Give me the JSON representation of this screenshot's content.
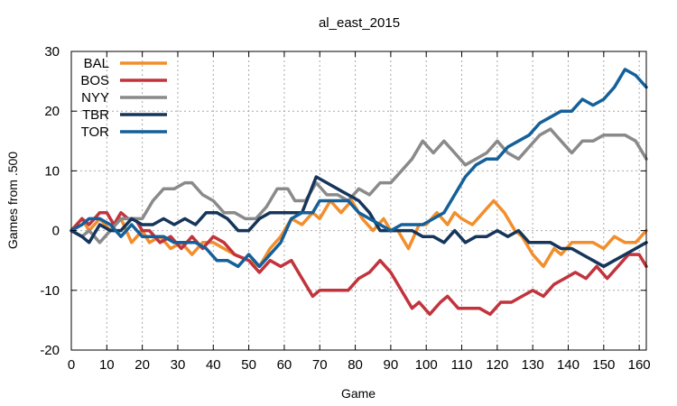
{
  "chart_data": {
    "type": "line",
    "title": "al_east_2015",
    "xlabel": "Game",
    "ylabel": "Games from .500",
    "xlim": [
      0,
      162
    ],
    "ylim": [
      -20,
      30
    ],
    "xticks": [
      0,
      10,
      20,
      30,
      40,
      50,
      60,
      70,
      80,
      90,
      100,
      110,
      120,
      130,
      140,
      150,
      160
    ],
    "yticks": [
      -20,
      -10,
      0,
      10,
      20,
      30
    ],
    "grid": true,
    "legend_position": "top-left",
    "series": [
      {
        "name": "BAL",
        "color": "#f28e2b",
        "points": [
          [
            0,
            0
          ],
          [
            3,
            2
          ],
          [
            5,
            0
          ],
          [
            8,
            2
          ],
          [
            11,
            0
          ],
          [
            14,
            2
          ],
          [
            17,
            -2
          ],
          [
            20,
            0
          ],
          [
            22,
            -2
          ],
          [
            25,
            -1
          ],
          [
            28,
            -3
          ],
          [
            31,
            -2
          ],
          [
            34,
            -4
          ],
          [
            37,
            -2
          ],
          [
            40,
            -2
          ],
          [
            43,
            -3
          ],
          [
            46,
            -4
          ],
          [
            50,
            -5
          ],
          [
            53,
            -6
          ],
          [
            56,
            -3
          ],
          [
            59,
            -1
          ],
          [
            62,
            2
          ],
          [
            65,
            1
          ],
          [
            68,
            3
          ],
          [
            70,
            2
          ],
          [
            73,
            5
          ],
          [
            76,
            3
          ],
          [
            79,
            5
          ],
          [
            82,
            2
          ],
          [
            85,
            0
          ],
          [
            88,
            2
          ],
          [
            90,
            0
          ],
          [
            92,
            0
          ],
          [
            95,
            -3
          ],
          [
            98,
            1
          ],
          [
            100,
            1
          ],
          [
            103,
            3
          ],
          [
            106,
            1
          ],
          [
            108,
            3
          ],
          [
            110,
            2
          ],
          [
            113,
            1
          ],
          [
            116,
            3
          ],
          [
            119,
            5
          ],
          [
            122,
            3
          ],
          [
            125,
            0
          ],
          [
            127,
            -1
          ],
          [
            130,
            -4
          ],
          [
            133,
            -6
          ],
          [
            136,
            -3
          ],
          [
            138,
            -4
          ],
          [
            141,
            -2
          ],
          [
            144,
            -2
          ],
          [
            147,
            -2
          ],
          [
            150,
            -3
          ],
          [
            153,
            -1
          ],
          [
            156,
            -2
          ],
          [
            159,
            -2
          ],
          [
            162,
            0
          ]
        ]
      },
      {
        "name": "BOS",
        "color": "#c1343d",
        "points": [
          [
            0,
            0
          ],
          [
            3,
            2
          ],
          [
            5,
            1
          ],
          [
            8,
            3
          ],
          [
            10,
            3
          ],
          [
            12,
            1
          ],
          [
            14,
            3
          ],
          [
            16,
            2
          ],
          [
            18,
            2
          ],
          [
            20,
            0
          ],
          [
            22,
            0
          ],
          [
            25,
            -2
          ],
          [
            28,
            -1
          ],
          [
            31,
            -3
          ],
          [
            34,
            -1
          ],
          [
            37,
            -3
          ],
          [
            40,
            -1
          ],
          [
            43,
            -2
          ],
          [
            46,
            -4
          ],
          [
            50,
            -5
          ],
          [
            53,
            -7
          ],
          [
            56,
            -5
          ],
          [
            59,
            -6
          ],
          [
            62,
            -5
          ],
          [
            65,
            -8
          ],
          [
            68,
            -11
          ],
          [
            70,
            -10
          ],
          [
            72,
            -10
          ],
          [
            75,
            -10
          ],
          [
            78,
            -10
          ],
          [
            81,
            -8
          ],
          [
            84,
            -7
          ],
          [
            87,
            -5
          ],
          [
            90,
            -7
          ],
          [
            93,
            -10
          ],
          [
            96,
            -13
          ],
          [
            98,
            -12
          ],
          [
            101,
            -14
          ],
          [
            104,
            -12
          ],
          [
            106,
            -11
          ],
          [
            109,
            -13
          ],
          [
            112,
            -13
          ],
          [
            115,
            -13
          ],
          [
            118,
            -14
          ],
          [
            121,
            -12
          ],
          [
            124,
            -12
          ],
          [
            127,
            -11
          ],
          [
            130,
            -10
          ],
          [
            133,
            -11
          ],
          [
            136,
            -9
          ],
          [
            139,
            -8
          ],
          [
            142,
            -7
          ],
          [
            145,
            -8
          ],
          [
            148,
            -6
          ],
          [
            151,
            -8
          ],
          [
            154,
            -6
          ],
          [
            157,
            -4
          ],
          [
            160,
            -4
          ],
          [
            162,
            -6
          ]
        ]
      },
      {
        "name": "NYY",
        "color": "#8a8a8a",
        "points": [
          [
            0,
            0
          ],
          [
            3,
            -1
          ],
          [
            5,
            0
          ],
          [
            8,
            -2
          ],
          [
            11,
            0
          ],
          [
            14,
            2
          ],
          [
            17,
            2
          ],
          [
            20,
            2
          ],
          [
            23,
            5
          ],
          [
            26,
            7
          ],
          [
            29,
            7
          ],
          [
            32,
            8
          ],
          [
            34,
            8
          ],
          [
            37,
            6
          ],
          [
            40,
            5
          ],
          [
            43,
            3
          ],
          [
            46,
            3
          ],
          [
            49,
            2
          ],
          [
            52,
            2
          ],
          [
            55,
            4
          ],
          [
            58,
            7
          ],
          [
            61,
            7
          ],
          [
            63,
            5
          ],
          [
            66,
            5
          ],
          [
            69,
            8
          ],
          [
            72,
            6
          ],
          [
            75,
            6
          ],
          [
            78,
            5
          ],
          [
            81,
            7
          ],
          [
            84,
            6
          ],
          [
            87,
            8
          ],
          [
            90,
            8
          ],
          [
            93,
            10
          ],
          [
            96,
            12
          ],
          [
            99,
            15
          ],
          [
            102,
            13
          ],
          [
            105,
            15
          ],
          [
            108,
            13
          ],
          [
            111,
            11
          ],
          [
            114,
            12
          ],
          [
            117,
            13
          ],
          [
            120,
            15
          ],
          [
            123,
            13
          ],
          [
            126,
            12
          ],
          [
            129,
            14
          ],
          [
            132,
            16
          ],
          [
            135,
            17
          ],
          [
            138,
            15
          ],
          [
            141,
            13
          ],
          [
            144,
            15
          ],
          [
            147,
            15
          ],
          [
            150,
            16
          ],
          [
            153,
            16
          ],
          [
            156,
            16
          ],
          [
            159,
            15
          ],
          [
            162,
            12
          ]
        ]
      },
      {
        "name": "TBR",
        "color": "#15355a",
        "points": [
          [
            0,
            0
          ],
          [
            3,
            -1
          ],
          [
            5,
            -2
          ],
          [
            8,
            1
          ],
          [
            11,
            0
          ],
          [
            14,
            0
          ],
          [
            17,
            2
          ],
          [
            20,
            1
          ],
          [
            23,
            1
          ],
          [
            26,
            2
          ],
          [
            29,
            1
          ],
          [
            32,
            2
          ],
          [
            35,
            1
          ],
          [
            38,
            3
          ],
          [
            41,
            3
          ],
          [
            44,
            2
          ],
          [
            47,
            0
          ],
          [
            50,
            0
          ],
          [
            53,
            2
          ],
          [
            56,
            3
          ],
          [
            59,
            3
          ],
          [
            62,
            3
          ],
          [
            65,
            3
          ],
          [
            67,
            6
          ],
          [
            69,
            9
          ],
          [
            72,
            8
          ],
          [
            75,
            7
          ],
          [
            78,
            6
          ],
          [
            81,
            5
          ],
          [
            84,
            3
          ],
          [
            87,
            0
          ],
          [
            90,
            0
          ],
          [
            93,
            0
          ],
          [
            96,
            0
          ],
          [
            99,
            -1
          ],
          [
            102,
            -1
          ],
          [
            105,
            -2
          ],
          [
            108,
            0
          ],
          [
            111,
            -2
          ],
          [
            114,
            -1
          ],
          [
            117,
            -1
          ],
          [
            120,
            0
          ],
          [
            123,
            -1
          ],
          [
            126,
            0
          ],
          [
            129,
            -2
          ],
          [
            132,
            -2
          ],
          [
            135,
            -2
          ],
          [
            138,
            -3
          ],
          [
            141,
            -3
          ],
          [
            144,
            -4
          ],
          [
            147,
            -5
          ],
          [
            150,
            -6
          ],
          [
            153,
            -5
          ],
          [
            156,
            -4
          ],
          [
            159,
            -3
          ],
          [
            162,
            -2
          ]
        ]
      },
      {
        "name": "TOR",
        "color": "#14609a",
        "points": [
          [
            0,
            0
          ],
          [
            3,
            1
          ],
          [
            5,
            2
          ],
          [
            8,
            2
          ],
          [
            11,
            1
          ],
          [
            14,
            -1
          ],
          [
            17,
            1
          ],
          [
            20,
            -1
          ],
          [
            23,
            -1
          ],
          [
            26,
            -1
          ],
          [
            29,
            -2
          ],
          [
            32,
            -2
          ],
          [
            35,
            -2
          ],
          [
            38,
            -3
          ],
          [
            41,
            -5
          ],
          [
            44,
            -5
          ],
          [
            47,
            -6
          ],
          [
            50,
            -4
          ],
          [
            53,
            -6
          ],
          [
            56,
            -4
          ],
          [
            59,
            -2
          ],
          [
            62,
            2
          ],
          [
            65,
            3
          ],
          [
            68,
            3
          ],
          [
            70,
            5
          ],
          [
            72,
            5
          ],
          [
            75,
            5
          ],
          [
            78,
            5
          ],
          [
            81,
            3
          ],
          [
            84,
            2
          ],
          [
            87,
            1
          ],
          [
            90,
            0
          ],
          [
            93,
            1
          ],
          [
            96,
            1
          ],
          [
            99,
            1
          ],
          [
            102,
            2
          ],
          [
            105,
            3
          ],
          [
            108,
            6
          ],
          [
            111,
            9
          ],
          [
            114,
            11
          ],
          [
            117,
            12
          ],
          [
            120,
            12
          ],
          [
            123,
            14
          ],
          [
            126,
            15
          ],
          [
            129,
            16
          ],
          [
            132,
            18
          ],
          [
            135,
            19
          ],
          [
            138,
            20
          ],
          [
            141,
            20
          ],
          [
            144,
            22
          ],
          [
            147,
            21
          ],
          [
            150,
            22
          ],
          [
            153,
            24
          ],
          [
            156,
            27
          ],
          [
            159,
            26
          ],
          [
            162,
            24
          ]
        ]
      }
    ]
  }
}
